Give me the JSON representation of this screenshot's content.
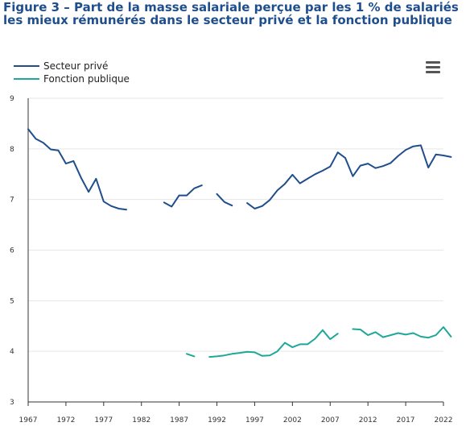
{
  "header": {
    "title": "Figure 3 – Part de la masse salariale perçue par les 1 % de salariés les mieux rémunérés dans le secteur privé et la fonction publique"
  },
  "toolbar": {
    "menu_icon": "hamburger-menu-icon"
  },
  "colors": {
    "prive": "#1f4e8c",
    "public": "#1fa89a",
    "grid": "#e6e6e6",
    "axis": "#333333"
  },
  "chart_data": {
    "type": "line",
    "title": "Figure 3 – Part de la masse salariale perçue par les 1 % de salariés les mieux rémunérés dans le secteur privé et la fonction publique",
    "xlabel": "",
    "ylabel": "",
    "xlim": [
      1967,
      2022
    ],
    "ylim": [
      3,
      9
    ],
    "yticks": [
      3,
      4,
      5,
      6,
      7,
      8,
      9
    ],
    "xticks": [
      1967,
      1972,
      1977,
      1982,
      1987,
      1992,
      1997,
      2002,
      2007,
      2012,
      2017,
      2022
    ],
    "grid": "horizontal",
    "legend": "top-left",
    "series": [
      {
        "name": "Secteur privé",
        "color": "#1f4e8c",
        "points": [
          [
            1967,
            8.39
          ],
          [
            1968,
            8.2
          ],
          [
            1969,
            8.12
          ],
          [
            1970,
            7.99
          ],
          [
            1971,
            7.97
          ],
          [
            1972,
            7.71
          ],
          [
            1973,
            7.76
          ],
          [
            1974,
            7.43
          ],
          [
            1975,
            7.15
          ],
          [
            1976,
            7.41
          ],
          [
            1977,
            6.96
          ],
          [
            1978,
            6.87
          ],
          [
            1979,
            6.82
          ],
          [
            1980,
            6.8
          ],
          [
            1981,
            null
          ],
          [
            1982,
            null
          ],
          [
            1983,
            null
          ],
          [
            1984,
            null
          ],
          [
            1985,
            6.94
          ],
          [
            1986,
            6.86
          ],
          [
            1987,
            7.08
          ],
          [
            1988,
            7.08
          ],
          [
            1989,
            7.22
          ],
          [
            1990,
            7.28
          ],
          [
            1991,
            null
          ],
          [
            1992,
            7.11
          ],
          [
            1993,
            6.95
          ],
          [
            1994,
            6.88
          ],
          [
            1995,
            null
          ],
          [
            1996,
            6.93
          ],
          [
            1997,
            6.82
          ],
          [
            1998,
            6.87
          ],
          [
            1999,
            6.99
          ],
          [
            2000,
            7.18
          ],
          [
            2001,
            7.31
          ],
          [
            2002,
            7.49
          ],
          [
            2003,
            7.32
          ],
          [
            2004,
            7.41
          ],
          [
            2005,
            7.5
          ],
          [
            2006,
            7.57
          ],
          [
            2007,
            7.65
          ],
          [
            2008,
            7.93
          ],
          [
            2009,
            7.82
          ],
          [
            2010,
            7.46
          ],
          [
            2011,
            7.67
          ],
          [
            2012,
            7.71
          ],
          [
            2013,
            7.62
          ],
          [
            2014,
            7.66
          ],
          [
            2015,
            7.72
          ],
          [
            2016,
            7.86
          ],
          [
            2017,
            7.98
          ],
          [
            2018,
            8.05
          ],
          [
            2019,
            8.07
          ],
          [
            2020,
            7.63
          ],
          [
            2021,
            7.89
          ],
          [
            2022,
            7.87
          ],
          [
            2023,
            7.84
          ]
        ]
      },
      {
        "name": "Fonction publique",
        "color": "#1fa89a",
        "points": [
          [
            1988,
            3.95
          ],
          [
            1989,
            3.9
          ],
          [
            1990,
            null
          ],
          [
            1991,
            3.89
          ],
          [
            1992,
            3.9
          ],
          [
            1993,
            3.92
          ],
          [
            1994,
            3.95
          ],
          [
            1995,
            3.97
          ],
          [
            1996,
            3.99
          ],
          [
            1997,
            3.98
          ],
          [
            1998,
            3.91
          ],
          [
            1999,
            3.92
          ],
          [
            2000,
            4.0
          ],
          [
            2001,
            4.17
          ],
          [
            2002,
            4.08
          ],
          [
            2003,
            4.14
          ],
          [
            2004,
            4.14
          ],
          [
            2005,
            4.25
          ],
          [
            2006,
            4.42
          ],
          [
            2007,
            4.24
          ],
          [
            2008,
            4.35
          ],
          [
            2009,
            null
          ],
          [
            2010,
            4.44
          ],
          [
            2011,
            4.43
          ],
          [
            2012,
            4.32
          ],
          [
            2013,
            4.38
          ],
          [
            2014,
            4.28
          ],
          [
            2015,
            4.32
          ],
          [
            2016,
            4.36
          ],
          [
            2017,
            4.33
          ],
          [
            2018,
            4.36
          ],
          [
            2019,
            4.29
          ],
          [
            2020,
            4.27
          ],
          [
            2021,
            4.32
          ],
          [
            2022,
            4.48
          ],
          [
            2023,
            4.29
          ]
        ]
      }
    ]
  }
}
